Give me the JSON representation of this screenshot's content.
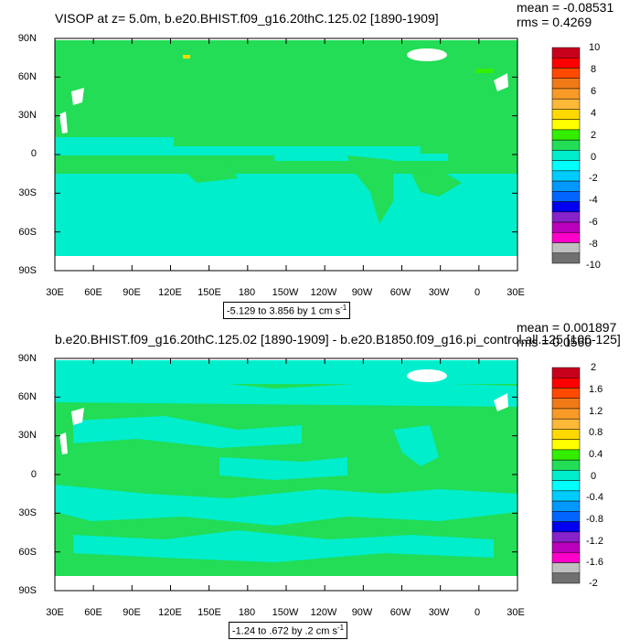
{
  "chart_data": [
    {
      "type": "heatmap",
      "title": "VISOP at z=   5.0m, b.e20.BHIST.f09_g16.20thC.125.02 [1890-1909]",
      "mean_label": "mean = -0.08531",
      "rms_label": "rms = 0.4269",
      "range_label": "-5.129 to 3.856 by 1 cm s",
      "range_exp": "-1",
      "y_ticks": [
        "90N",
        "60N",
        "30N",
        "0",
        "30S",
        "60S",
        "90S"
      ],
      "x_ticks": [
        "30E",
        "60E",
        "90E",
        "120E",
        "150E",
        "180",
        "150W",
        "120W",
        "90W",
        "60W",
        "30W",
        "0",
        "30E"
      ],
      "colorbar_labels": [
        "10",
        "8",
        "6",
        "4",
        "2",
        "0",
        "-2",
        "-4",
        "-6",
        "-8",
        "-10"
      ],
      "colorbar_colors": [
        "#c8001e",
        "#ff0000",
        "#ff4a00",
        "#f07a18",
        "#f89a28",
        "#fcb838",
        "#ffd800",
        "#ffff00",
        "#33ee00",
        "#22dd55",
        "#00eecc",
        "#00ffff",
        "#00ccff",
        "#0099ff",
        "#0066ff",
        "#0000ee",
        "#8822cc",
        "#bb00bb",
        "#ff00cc",
        "#c0c0c0",
        "#707070"
      ],
      "dominant_colors": {
        "near_zero_positive": "#22dd55",
        "near_zero_negative": "#00eecc"
      }
    },
    {
      "type": "heatmap",
      "title": "b.e20.BHIST.f09_g16.20thC.125.02 [1890-1909] - b.e20.B1850.f09_g16.pi_control.all.125 [106-125]",
      "mean_label": "mean = 0.001897",
      "rms_label": "rms = 0.0560",
      "range_label": "-1.24 to .672 by .2 cm s",
      "range_exp": "-1",
      "y_ticks": [
        "90N",
        "60N",
        "30N",
        "0",
        "30S",
        "60S",
        "90S"
      ],
      "x_ticks": [
        "30E",
        "60E",
        "90E",
        "120E",
        "150E",
        "180",
        "150W",
        "120W",
        "90W",
        "60W",
        "30W",
        "0",
        "30E"
      ],
      "colorbar_labels": [
        "2",
        "1.6",
        "1.2",
        "0.8",
        "0.4",
        "0",
        "-0.4",
        "-0.8",
        "-1.2",
        "-1.6",
        "-2"
      ],
      "colorbar_colors": [
        "#c8001e",
        "#ff0000",
        "#ff4a00",
        "#f07a18",
        "#f89a28",
        "#fcb838",
        "#ffd800",
        "#ffff00",
        "#33ee00",
        "#22dd55",
        "#00eecc",
        "#00ffff",
        "#00ccff",
        "#0099ff",
        "#0066ff",
        "#0000ee",
        "#8822cc",
        "#bb00bb",
        "#ff00cc",
        "#c0c0c0",
        "#707070"
      ],
      "dominant_colors": {
        "near_zero_positive": "#22dd55",
        "near_zero_negative": "#00eecc"
      }
    }
  ]
}
